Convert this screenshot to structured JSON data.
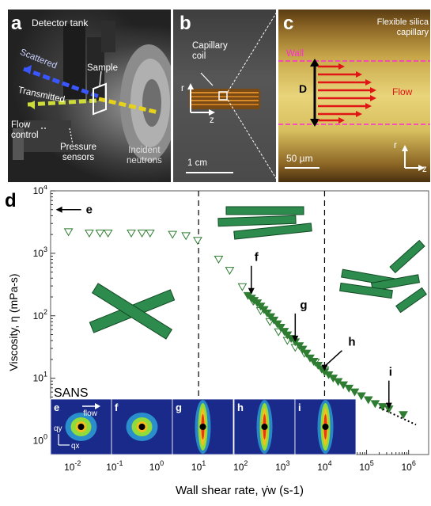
{
  "panel_a": {
    "label": "a",
    "title": "Detector tank",
    "scattered": "Scattered",
    "transmitted": "Transmitted",
    "sample": "Sample",
    "flow_control": "Flow\ncontrol",
    "pressure_sensors": "Pressure\nsensors",
    "incident_neutrons": "Incident\nneutrons"
  },
  "panel_b": {
    "label": "b",
    "capillary_coil": "Capillary\ncoil",
    "axis_r": "r",
    "axis_z": "z",
    "scale": "1 cm"
  },
  "panel_c": {
    "label": "c",
    "title": "Flexible silica\ncapillary",
    "wall": "Wall",
    "diameter": "D",
    "flow": "Flow",
    "scale": "50 µm",
    "axis_r": "r",
    "axis_z": "z"
  },
  "panel_d": {
    "label": "d",
    "sans_label": "SANS",
    "arrow_e": "e",
    "arrow_f": "f",
    "arrow_g": "g",
    "arrow_h": "h",
    "arrow_i": "i",
    "insets": [
      {
        "label": "e",
        "flow": "flow",
        "qy": "qy",
        "qx": "qx"
      },
      {
        "label": "f"
      },
      {
        "label": "g"
      },
      {
        "label": "h"
      },
      {
        "label": "i"
      }
    ]
  },
  "chart_data": {
    "type": "scatter",
    "xlabel": "Wall shear rate, γ̇w (s-1)",
    "ylabel": "Viscosity, η (mPa-s)",
    "xscale": "log",
    "yscale": "log",
    "xlim": [
      0.003,
      3000000
    ],
    "ylim": [
      0.6,
      10000
    ],
    "x_ticks": [
      "10-2",
      "10-1",
      "100",
      "101",
      "102",
      "103",
      "104",
      "105",
      "106"
    ],
    "y_ticks": [
      "100",
      "101",
      "102",
      "103",
      "104"
    ],
    "vlines": [
      10,
      10000
    ],
    "series": [
      {
        "marker": "open-triangle-down",
        "color": "#2e7d32",
        "points": [
          [
            0.008,
            2200
          ],
          [
            0.025,
            2100
          ],
          [
            0.045,
            2100
          ],
          [
            0.07,
            2100
          ],
          [
            0.25,
            2100
          ],
          [
            0.45,
            2100
          ],
          [
            0.7,
            2100
          ],
          [
            2.4,
            2000
          ],
          [
            5,
            1900
          ],
          [
            9.5,
            1600
          ],
          [
            30,
            800
          ],
          [
            55,
            530
          ],
          [
            110,
            290
          ],
          [
            200,
            170
          ],
          [
            300,
            120
          ],
          [
            500,
            80
          ],
          [
            800,
            55
          ],
          [
            1300,
            40
          ],
          [
            2000,
            31
          ],
          [
            3300,
            25
          ],
          [
            6000,
            18
          ],
          [
            10000,
            13.5
          ]
        ]
      },
      {
        "marker": "filled-triangle-down",
        "color": "#2e7d32",
        "points": [
          [
            150,
            210
          ],
          [
            180,
            190
          ],
          [
            210,
            175
          ],
          [
            250,
            160
          ],
          [
            300,
            142
          ],
          [
            360,
            125
          ],
          [
            430,
            110
          ],
          [
            520,
            96
          ],
          [
            620,
            85
          ],
          [
            750,
            74
          ],
          [
            900,
            65
          ],
          [
            1100,
            56
          ],
          [
            1300,
            49
          ],
          [
            1600,
            43
          ],
          [
            2000,
            38
          ],
          [
            2500,
            33
          ],
          [
            3000,
            29
          ],
          [
            3700,
            25
          ],
          [
            4500,
            21
          ],
          [
            5500,
            18.5
          ],
          [
            7000,
            16
          ],
          [
            8500,
            14
          ],
          [
            10000,
            12.6
          ],
          [
            12500,
            11.3
          ],
          [
            16000,
            10
          ],
          [
            21000,
            8.8
          ],
          [
            28000,
            7.8
          ],
          [
            38000,
            6.9
          ],
          [
            52000,
            6
          ],
          [
            75000,
            5.2
          ],
          [
            110000,
            4.5
          ],
          [
            160000,
            3.9
          ],
          [
            240000,
            3.5
          ],
          [
            340000,
            3.2
          ],
          [
            750000,
            2.6
          ]
        ]
      }
    ],
    "power_law_fit": {
      "style": "dotted",
      "from": [
        200000,
        3.4
      ],
      "to": [
        1500000,
        1.8
      ]
    },
    "annotations": [
      {
        "label": "e",
        "x": 0.004,
        "y": 5000
      },
      {
        "label": "f",
        "x": 180,
        "y": 220
      },
      {
        "label": "g",
        "x": 2000,
        "y": 38
      },
      {
        "label": "h",
        "x": 10000,
        "y": 13
      },
      {
        "label": "i",
        "x": 340000,
        "y": 3.2
      }
    ]
  }
}
